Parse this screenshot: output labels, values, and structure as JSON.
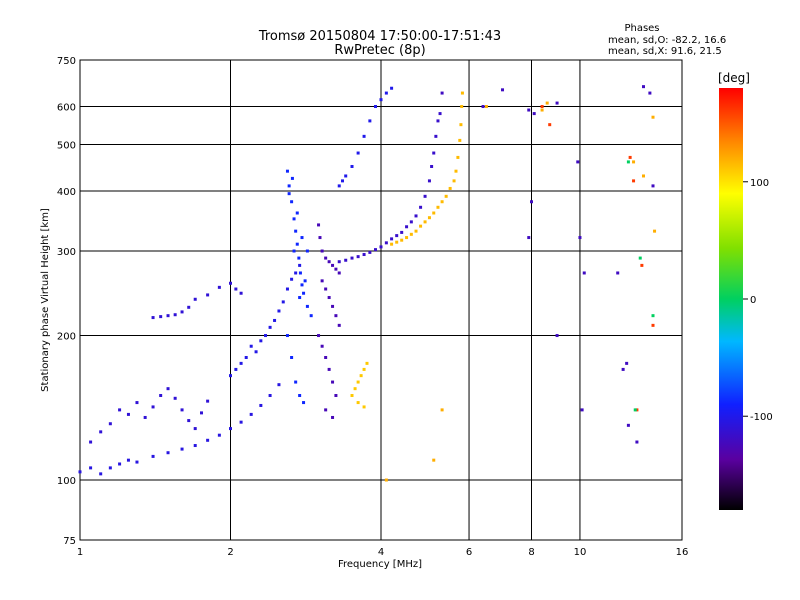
{
  "chart_data": {
    "type": "scatter",
    "title": "Tromsø 20150804 17:50:00-17:51:43",
    "subtitle": "RwPretec (8p)",
    "xlabel": "Frequency [MHz]",
    "ylabel": "Stationary phase Virtual Height [km]",
    "x_scale": "log",
    "y_scale": "log",
    "xlim": [
      1,
      16
    ],
    "ylim": [
      75,
      750
    ],
    "x_ticks": [
      1,
      2,
      4,
      6,
      8,
      10,
      16
    ],
    "x_tick_labels": [
      "1",
      "2",
      "4",
      "6",
      "8",
      "10",
      "16"
    ],
    "y_ticks": [
      75,
      100,
      200,
      300,
      400,
      500,
      600,
      750
    ],
    "y_tick_labels": [
      "75",
      "100",
      "200",
      "300",
      "400",
      "500",
      "600",
      "750"
    ],
    "grid": true,
    "stats": {
      "heading": "Phases",
      "line_o": "mean, sd,O: -82.2, 16.6",
      "line_x": "mean, sd,X:  91.6, 21.5"
    },
    "colorbar": {
      "label": "[deg]",
      "range": [
        -180,
        180
      ],
      "ticks": [
        100,
        0,
        -100
      ],
      "tick_labels": [
        "100",
        "0",
        "-100"
      ]
    },
    "series": [
      {
        "phase": -105,
        "points": [
          [
            1.0,
            104
          ],
          [
            1.05,
            106
          ],
          [
            1.1,
            103
          ],
          [
            1.15,
            106
          ],
          [
            1.2,
            108
          ],
          [
            1.25,
            110
          ],
          [
            1.3,
            109
          ],
          [
            1.4,
            112
          ],
          [
            1.5,
            114
          ],
          [
            1.6,
            116
          ],
          [
            1.7,
            118
          ],
          [
            1.8,
            121
          ],
          [
            1.9,
            124
          ],
          [
            2.0,
            128
          ],
          [
            2.1,
            132
          ],
          [
            2.2,
            137
          ],
          [
            2.3,
            143
          ],
          [
            2.4,
            150
          ],
          [
            2.5,
            158
          ]
        ]
      },
      {
        "phase": -110,
        "points": [
          [
            1.05,
            120
          ],
          [
            1.1,
            126
          ],
          [
            1.15,
            131
          ],
          [
            1.2,
            140
          ],
          [
            1.25,
            137
          ],
          [
            1.3,
            145
          ],
          [
            1.35,
            135
          ],
          [
            1.4,
            142
          ],
          [
            1.45,
            150
          ],
          [
            1.5,
            155
          ],
          [
            1.55,
            148
          ],
          [
            1.6,
            140
          ],
          [
            1.65,
            133
          ],
          [
            1.7,
            128
          ],
          [
            1.75,
            138
          ],
          [
            1.8,
            146
          ]
        ]
      },
      {
        "phase": -110,
        "points": [
          [
            1.4,
            218
          ],
          [
            1.45,
            219
          ],
          [
            1.5,
            220
          ],
          [
            1.55,
            221
          ],
          [
            1.6,
            224
          ],
          [
            1.65,
            229
          ],
          [
            1.7,
            238
          ],
          [
            1.8,
            243
          ],
          [
            1.9,
            252
          ],
          [
            2.0,
            257
          ],
          [
            2.05,
            250
          ],
          [
            2.1,
            245
          ]
        ]
      },
      {
        "phase": -102,
        "points": [
          [
            2.0,
            165
          ],
          [
            2.05,
            170
          ],
          [
            2.1,
            175
          ],
          [
            2.15,
            180
          ],
          [
            2.2,
            190
          ],
          [
            2.25,
            185
          ],
          [
            2.3,
            195
          ],
          [
            2.35,
            200
          ],
          [
            2.4,
            208
          ],
          [
            2.45,
            215
          ],
          [
            2.5,
            225
          ],
          [
            2.55,
            235
          ],
          [
            2.6,
            250
          ],
          [
            2.65,
            262
          ],
          [
            2.7,
            270
          ],
          [
            2.75,
            280
          ]
        ]
      },
      {
        "phase": -88,
        "points": [
          [
            2.6,
            440
          ],
          [
            2.62,
            410
          ],
          [
            2.65,
            380
          ],
          [
            2.68,
            350
          ],
          [
            2.7,
            330
          ],
          [
            2.72,
            310
          ],
          [
            2.74,
            290
          ],
          [
            2.76,
            270
          ],
          [
            2.78,
            255
          ],
          [
            2.8,
            245
          ],
          [
            2.82,
            260
          ],
          [
            2.85,
            300
          ],
          [
            2.62,
            395
          ],
          [
            2.66,
            425
          ],
          [
            2.72,
            360
          ],
          [
            2.78,
            320
          ],
          [
            2.68,
            300
          ],
          [
            2.75,
            240
          ],
          [
            2.85,
            230
          ],
          [
            2.9,
            220
          ],
          [
            2.6,
            200
          ],
          [
            2.65,
            180
          ],
          [
            2.7,
            160
          ],
          [
            2.75,
            150
          ],
          [
            2.8,
            145
          ]
        ]
      },
      {
        "phase": -125,
        "points": [
          [
            3.0,
            340
          ],
          [
            3.02,
            320
          ],
          [
            3.05,
            300
          ],
          [
            3.1,
            290
          ],
          [
            3.15,
            285
          ],
          [
            3.2,
            280
          ],
          [
            3.25,
            275
          ],
          [
            3.3,
            270
          ],
          [
            3.05,
            260
          ],
          [
            3.1,
            250
          ],
          [
            3.15,
            240
          ],
          [
            3.2,
            230
          ],
          [
            3.25,
            220
          ],
          [
            3.3,
            210
          ],
          [
            3.0,
            200
          ],
          [
            3.05,
            190
          ],
          [
            3.1,
            180
          ],
          [
            3.15,
            170
          ],
          [
            3.2,
            160
          ],
          [
            3.25,
            150
          ],
          [
            3.1,
            140
          ],
          [
            3.2,
            135
          ]
        ]
      },
      {
        "phase": -115,
        "points": [
          [
            3.3,
            285
          ],
          [
            3.4,
            287
          ],
          [
            3.5,
            290
          ],
          [
            3.6,
            292
          ],
          [
            3.7,
            295
          ],
          [
            3.8,
            298
          ],
          [
            3.9,
            302
          ],
          [
            4.0,
            306
          ],
          [
            4.1,
            312
          ],
          [
            4.2,
            318
          ],
          [
            4.3,
            323
          ],
          [
            4.4,
            328
          ],
          [
            4.5,
            337
          ],
          [
            4.6,
            345
          ],
          [
            4.7,
            355
          ],
          [
            4.8,
            370
          ],
          [
            4.9,
            390
          ],
          [
            5.0,
            420
          ],
          [
            5.05,
            450
          ],
          [
            5.1,
            480
          ],
          [
            5.15,
            520
          ],
          [
            5.2,
            560
          ],
          [
            5.25,
            580
          ]
        ]
      },
      {
        "phase": 115,
        "points": [
          [
            4.2,
            310
          ],
          [
            4.3,
            313
          ],
          [
            4.4,
            316
          ],
          [
            4.5,
            320
          ],
          [
            4.6,
            325
          ],
          [
            4.7,
            330
          ],
          [
            4.8,
            338
          ],
          [
            4.9,
            345
          ],
          [
            5.0,
            352
          ],
          [
            5.1,
            360
          ],
          [
            5.2,
            370
          ],
          [
            5.3,
            380
          ],
          [
            5.4,
            390
          ],
          [
            5.5,
            405
          ],
          [
            5.6,
            420
          ],
          [
            5.65,
            440
          ],
          [
            5.7,
            470
          ],
          [
            5.75,
            510
          ],
          [
            5.78,
            550
          ],
          [
            5.8,
            600
          ],
          [
            5.82,
            640
          ]
        ]
      },
      {
        "phase": 110,
        "points": [
          [
            3.5,
            150
          ],
          [
            3.55,
            155
          ],
          [
            3.6,
            160
          ],
          [
            3.65,
            165
          ],
          [
            3.7,
            170
          ],
          [
            3.75,
            175
          ],
          [
            3.6,
            145
          ],
          [
            3.7,
            142
          ]
        ]
      },
      {
        "phase": -100,
        "points": [
          [
            3.3,
            410
          ],
          [
            3.35,
            420
          ],
          [
            3.4,
            430
          ],
          [
            3.5,
            450
          ],
          [
            3.6,
            480
          ],
          [
            3.7,
            520
          ],
          [
            3.8,
            560
          ],
          [
            3.9,
            600
          ],
          [
            4.0,
            620
          ],
          [
            4.1,
            640
          ],
          [
            4.2,
            655
          ]
        ]
      },
      {
        "phase": -120,
        "points": [
          [
            5.3,
            640
          ],
          [
            6.4,
            600
          ],
          [
            7.0,
            650
          ],
          [
            7.9,
            590
          ],
          [
            8.1,
            580
          ],
          [
            9.0,
            610
          ],
          [
            9.9,
            460
          ],
          [
            10.0,
            320
          ],
          [
            10.2,
            270
          ],
          [
            11.9,
            270
          ],
          [
            12.2,
            170
          ],
          [
            12.5,
            130
          ],
          [
            13.4,
            660
          ],
          [
            13.8,
            640
          ],
          [
            14.0,
            410
          ],
          [
            7.9,
            320
          ],
          [
            8.0,
            380
          ],
          [
            9.0,
            200
          ],
          [
            10.1,
            140
          ],
          [
            12.4,
            175
          ],
          [
            13.0,
            120
          ]
        ]
      },
      {
        "phase": 120,
        "points": [
          [
            6.5,
            600
          ],
          [
            8.4,
            590
          ],
          [
            8.6,
            610
          ],
          [
            12.8,
            460
          ],
          [
            13.4,
            430
          ],
          [
            14.0,
            570
          ],
          [
            14.1,
            330
          ],
          [
            4.1,
            100
          ],
          [
            5.1,
            110
          ],
          [
            5.3,
            140
          ]
        ]
      },
      {
        "phase": 160,
        "points": [
          [
            8.4,
            600
          ],
          [
            8.7,
            550
          ],
          [
            12.6,
            470
          ],
          [
            12.8,
            420
          ],
          [
            13.3,
            280
          ],
          [
            14.0,
            210
          ],
          [
            13.0,
            140
          ]
        ]
      },
      {
        "phase": 0,
        "points": [
          [
            12.5,
            460
          ],
          [
            13.2,
            290
          ],
          [
            14.0,
            220
          ],
          [
            12.9,
            140
          ]
        ]
      }
    ]
  }
}
